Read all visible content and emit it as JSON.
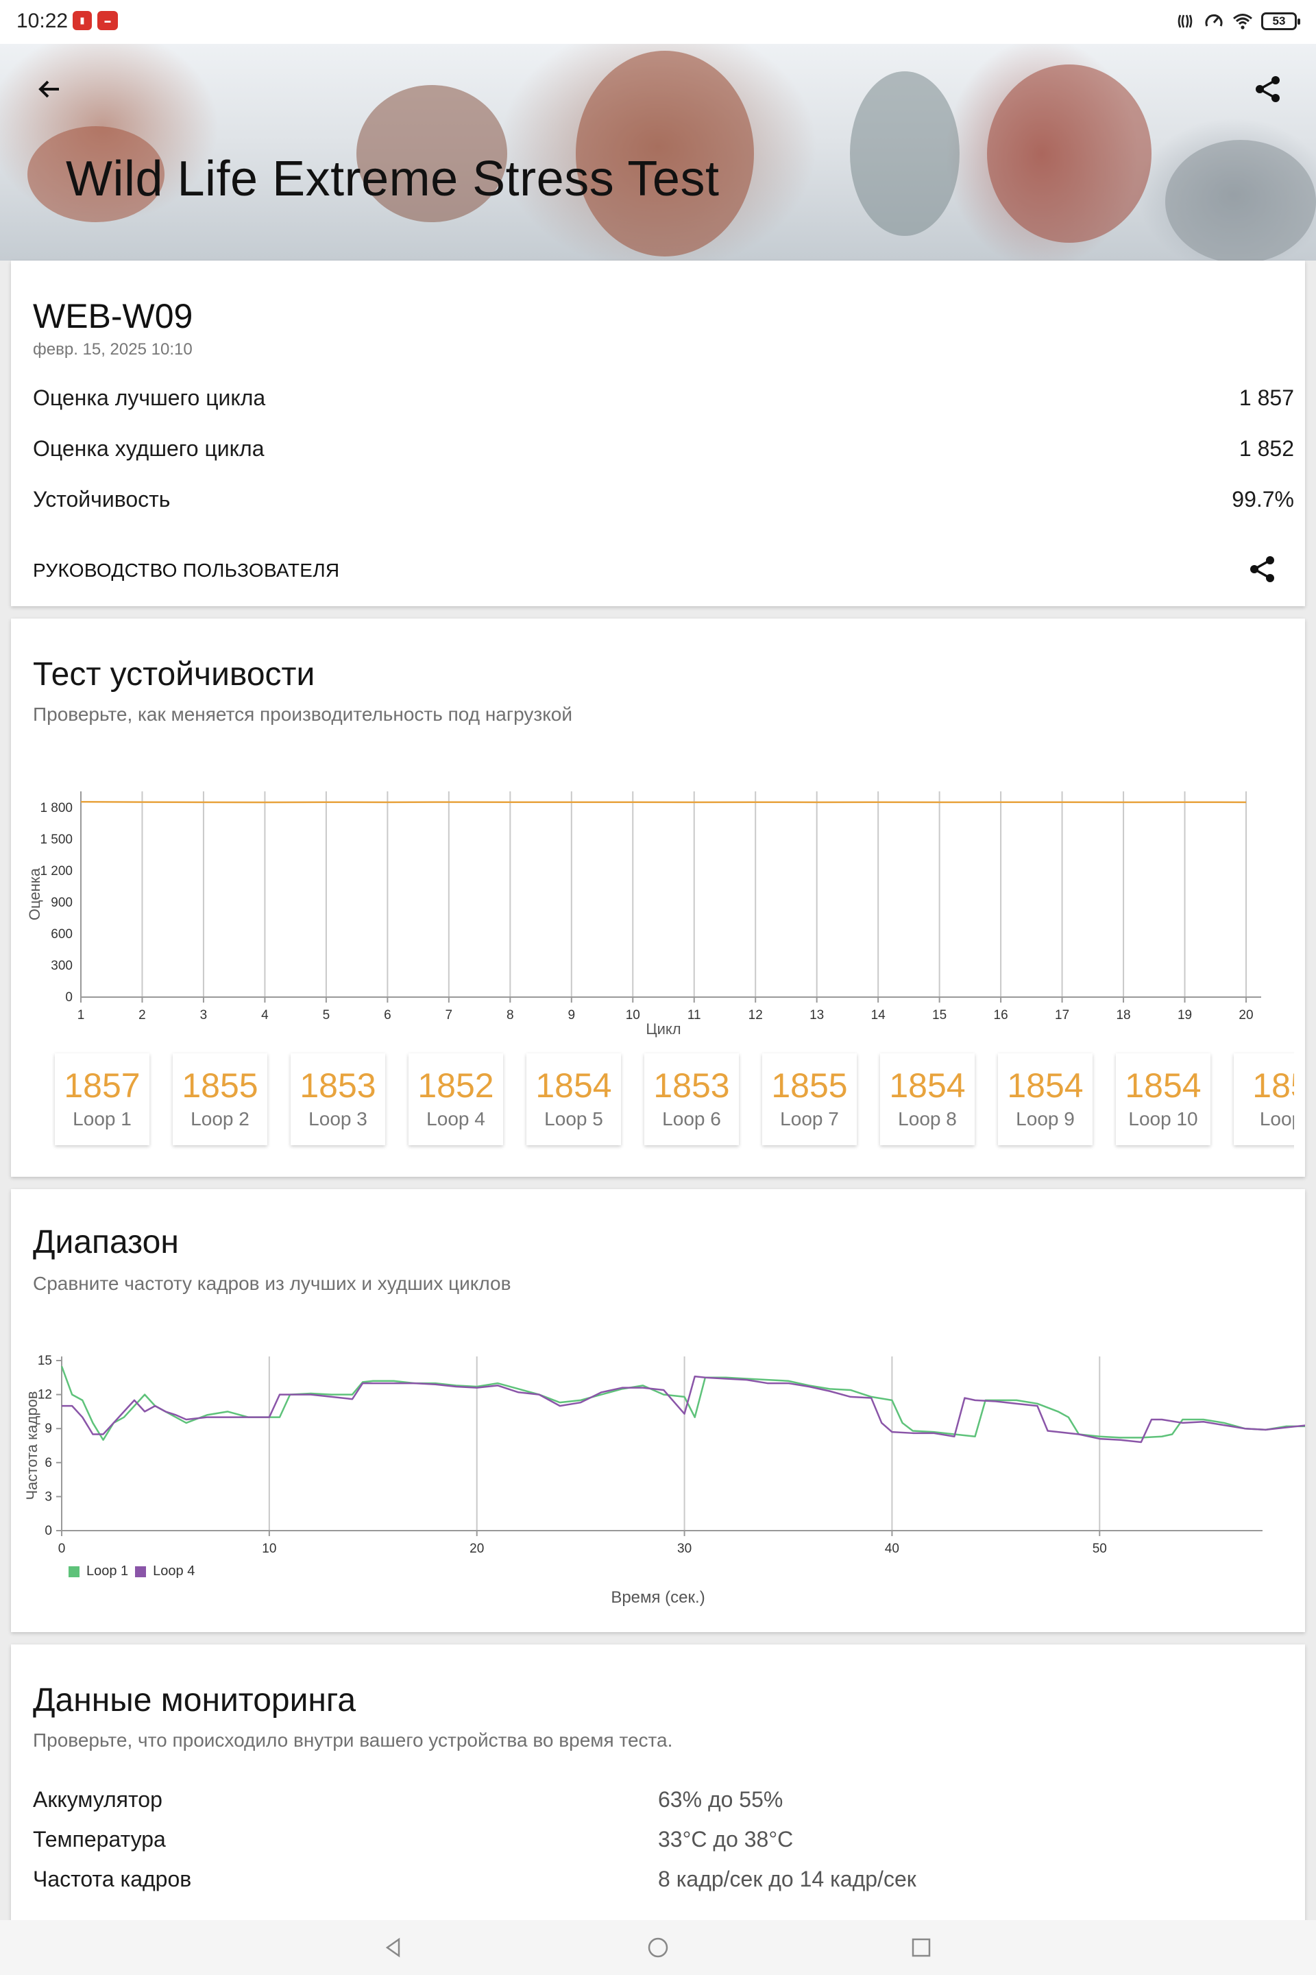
{
  "status_bar": {
    "time": "10:22",
    "battery": "53",
    "icons": [
      "nfc-icon",
      "speed-icon",
      "wifi-icon",
      "battery-icon"
    ]
  },
  "header": {
    "title": "Wild Life Extreme Stress Test",
    "back_icon": "arrow-left-icon",
    "share_icon": "share-icon"
  },
  "summary": {
    "device": "WEB-W09",
    "date": "февр. 15, 2025 10:10",
    "rows": [
      {
        "label": "Оценка лучшего цикла",
        "value": "1 857"
      },
      {
        "label": "Оценка худшего цикла",
        "value": "1 852"
      },
      {
        "label": "Устойчивость",
        "value": "99.7%"
      }
    ],
    "guide_link": "РУКОВОДСТВО ПОЛЬЗОВАТЕЛЯ"
  },
  "stability": {
    "title": "Тест устойчивости",
    "subtitle": "Проверьте, как меняется производительность под нагрузкой",
    "loops": [
      {
        "score": "1857",
        "label": "Loop 1"
      },
      {
        "score": "1855",
        "label": "Loop 2"
      },
      {
        "score": "1853",
        "label": "Loop 3"
      },
      {
        "score": "1852",
        "label": "Loop 4"
      },
      {
        "score": "1854",
        "label": "Loop 5"
      },
      {
        "score": "1853",
        "label": "Loop 6"
      },
      {
        "score": "1855",
        "label": "Loop 7"
      },
      {
        "score": "1854",
        "label": "Loop 8"
      },
      {
        "score": "1854",
        "label": "Loop 9"
      },
      {
        "score": "1854",
        "label": "Loop 10"
      },
      {
        "score": "185",
        "label": "Loop"
      }
    ]
  },
  "range": {
    "title": "Диапазон",
    "subtitle": "Сравните частоту кадров из лучших и худших циклов"
  },
  "monitoring": {
    "title": "Данные мониторинга",
    "subtitle": "Проверьте, что происходило внутри вашего устройства во время теста.",
    "rows": [
      {
        "label": "Аккумулятор",
        "value": "63% до 55%"
      },
      {
        "label": "Температура",
        "value": "33°C до 38°C"
      },
      {
        "label": "Частота кадров",
        "value": "8 кадр/сек до 14 кадр/сек"
      }
    ]
  },
  "chart_data": [
    {
      "type": "line",
      "xlabel": "Цикл",
      "ylabel": "Оценка",
      "x": [
        1,
        2,
        3,
        4,
        5,
        6,
        7,
        8,
        9,
        10,
        11,
        12,
        13,
        14,
        15,
        16,
        17,
        18,
        19,
        20
      ],
      "y_ticks": [
        "0",
        "300",
        "600",
        "900",
        "1 200",
        "1 500",
        "1 800"
      ],
      "ylim": [
        0,
        1800
      ],
      "series": [
        {
          "values": [
            1857,
            1855,
            1853,
            1852,
            1854,
            1853,
            1855,
            1854,
            1854,
            1854,
            1853,
            1854,
            1853,
            1854,
            1853,
            1854,
            1854,
            1853,
            1854,
            1853
          ],
          "color": "#e8a33d"
        }
      ],
      "grid": "vertical"
    },
    {
      "type": "line",
      "xlabel": "Время (сек.)",
      "ylabel": "Частота кадров",
      "x_ticks": [
        0,
        10,
        20,
        30,
        40,
        50
      ],
      "y_ticks": [
        0,
        3,
        6,
        9,
        12,
        15
      ],
      "xlim": [
        0,
        60
      ],
      "ylim": [
        0,
        15
      ],
      "legend": "bottom-left",
      "series": [
        {
          "name": "Loop 1",
          "color": "#5ec27a",
          "points": [
            [
              0,
              14.5
            ],
            [
              0.5,
              12
            ],
            [
              1,
              11.5
            ],
            [
              1.5,
              9.5
            ],
            [
              2,
              8
            ],
            [
              2.5,
              9.5
            ],
            [
              3,
              10
            ],
            [
              3.5,
              11
            ],
            [
              4,
              12
            ],
            [
              4.5,
              11
            ],
            [
              5,
              10.5
            ],
            [
              5.5,
              10
            ],
            [
              6,
              9.5
            ],
            [
              7,
              10.2
            ],
            [
              8,
              10.5
            ],
            [
              9,
              10
            ],
            [
              10,
              10
            ],
            [
              10.5,
              10
            ],
            [
              11,
              12
            ],
            [
              12,
              12.1
            ],
            [
              13,
              12
            ],
            [
              14,
              12
            ],
            [
              14.5,
              13.1
            ],
            [
              15,
              13.2
            ],
            [
              16,
              13.2
            ],
            [
              17,
              13
            ],
            [
              18,
              13
            ],
            [
              19,
              12.8
            ],
            [
              20,
              12.7
            ],
            [
              21,
              13
            ],
            [
              22,
              12.5
            ],
            [
              23,
              12
            ],
            [
              24,
              11.3
            ],
            [
              25,
              11.5
            ],
            [
              26,
              12
            ],
            [
              27,
              12.5
            ],
            [
              28,
              12.8
            ],
            [
              29,
              12
            ],
            [
              30,
              11.8
            ],
            [
              30.5,
              10
            ],
            [
              31,
              13.5
            ],
            [
              32,
              13.5
            ],
            [
              33,
              13.4
            ],
            [
              34,
              13.3
            ],
            [
              35,
              13.2
            ],
            [
              36,
              12.8
            ],
            [
              37,
              12.5
            ],
            [
              38,
              12.4
            ],
            [
              39,
              11.8
            ],
            [
              40,
              11.5
            ],
            [
              40.5,
              9.5
            ],
            [
              41,
              8.8
            ],
            [
              42,
              8.7
            ],
            [
              43,
              8.5
            ],
            [
              44,
              8.3
            ],
            [
              44.5,
              11.5
            ],
            [
              45,
              11.5
            ],
            [
              46,
              11.5
            ],
            [
              47,
              11.2
            ],
            [
              48,
              10.5
            ],
            [
              48.5,
              10
            ],
            [
              49,
              8.5
            ],
            [
              50,
              8.3
            ],
            [
              51,
              8.2
            ],
            [
              52,
              8.2
            ],
            [
              53,
              8.3
            ],
            [
              53.5,
              8.5
            ],
            [
              54,
              9.8
            ],
            [
              55,
              9.8
            ],
            [
              56,
              9.5
            ],
            [
              57,
              9
            ],
            [
              58,
              8.9
            ],
            [
              59,
              9.2
            ],
            [
              60,
              9.2
            ]
          ]
        },
        {
          "name": "Loop 4",
          "color": "#8a55a8",
          "points": [
            [
              0,
              11
            ],
            [
              0.5,
              11
            ],
            [
              1,
              10
            ],
            [
              1.5,
              8.5
            ],
            [
              2,
              8.5
            ],
            [
              2.5,
              9.5
            ],
            [
              3,
              10.5
            ],
            [
              3.5,
              11.5
            ],
            [
              4,
              10.5
            ],
            [
              4.5,
              11
            ],
            [
              5,
              10.5
            ],
            [
              5.5,
              10.2
            ],
            [
              6,
              9.8
            ],
            [
              7,
              10
            ],
            [
              8,
              10
            ],
            [
              9,
              10
            ],
            [
              10,
              10
            ],
            [
              10.5,
              12
            ],
            [
              11,
              12
            ],
            [
              12,
              12
            ],
            [
              13,
              11.8
            ],
            [
              14,
              11.6
            ],
            [
              14.5,
              13
            ],
            [
              15,
              13
            ],
            [
              16,
              13
            ],
            [
              17,
              13
            ],
            [
              18,
              12.9
            ],
            [
              19,
              12.7
            ],
            [
              20,
              12.6
            ],
            [
              21,
              12.8
            ],
            [
              22,
              12.2
            ],
            [
              23,
              12
            ],
            [
              24,
              11
            ],
            [
              25,
              11.3
            ],
            [
              26,
              12.2
            ],
            [
              27,
              12.6
            ],
            [
              28,
              12.6
            ],
            [
              29,
              12.4
            ],
            [
              30,
              10.3
            ],
            [
              30.5,
              13.6
            ],
            [
              31,
              13.5
            ],
            [
              32,
              13.4
            ],
            [
              33,
              13.3
            ],
            [
              34,
              13
            ],
            [
              35,
              13
            ],
            [
              36,
              12.7
            ],
            [
              37,
              12.3
            ],
            [
              38,
              11.8
            ],
            [
              39,
              11.7
            ],
            [
              39.5,
              9.5
            ],
            [
              40,
              8.7
            ],
            [
              41,
              8.6
            ],
            [
              42,
              8.6
            ],
            [
              43,
              8.3
            ],
            [
              43.5,
              11.7
            ],
            [
              44,
              11.5
            ],
            [
              45,
              11.4
            ],
            [
              46,
              11.2
            ],
            [
              47,
              11
            ],
            [
              47.5,
              8.8
            ],
            [
              48,
              8.7
            ],
            [
              49,
              8.5
            ],
            [
              50,
              8.1
            ],
            [
              51,
              8
            ],
            [
              52,
              7.8
            ],
            [
              52.5,
              9.8
            ],
            [
              53,
              9.8
            ],
            [
              54,
              9.5
            ],
            [
              55,
              9.6
            ],
            [
              56,
              9.3
            ],
            [
              57,
              9
            ],
            [
              58,
              8.9
            ],
            [
              59,
              9.1
            ],
            [
              60,
              9.3
            ]
          ]
        }
      ]
    }
  ]
}
